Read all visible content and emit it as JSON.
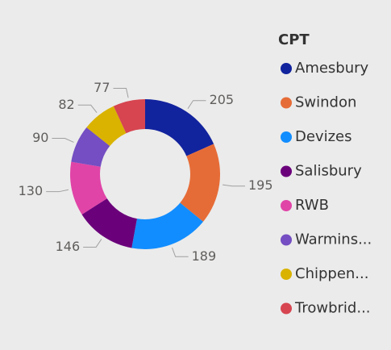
{
  "chart_data": {
    "type": "donut",
    "legend_title": "CPT",
    "categories": [
      "Amesbury",
      "Swindon",
      "Devizes",
      "Salisbury",
      "RWB",
      "Warmins...",
      "Chippen...",
      "Trowbrid..."
    ],
    "values": [
      205,
      195,
      189,
      146,
      130,
      90,
      82,
      77
    ],
    "colors": [
      "#12239E",
      "#E66C37",
      "#118DFF",
      "#6B007B",
      "#E044A7",
      "#744EC2",
      "#D9B300",
      "#D64550"
    ],
    "legend_position": "right"
  }
}
